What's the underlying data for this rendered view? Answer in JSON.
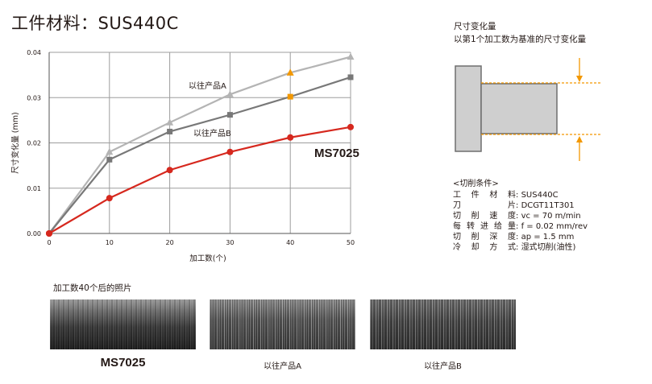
{
  "title": "工件材料：SUS440C",
  "chart_data": {
    "type": "line",
    "xlabel": "加工数(个)",
    "ylabel": "尺寸变化量 (mm)",
    "x": [
      0,
      10,
      20,
      30,
      40,
      50
    ],
    "xlim": [
      0,
      50
    ],
    "ylim": [
      0,
      0.04
    ],
    "xticks": [
      "0",
      "10",
      "20",
      "30",
      "40",
      "50"
    ],
    "yticks": [
      "0.00",
      "0.01",
      "0.02",
      "0.03",
      "0.04"
    ],
    "grid": true,
    "series": [
      {
        "name": "以往产品A",
        "color": "#b4b4b4",
        "marker": "triangle",
        "values": [
          0,
          0.018,
          0.0245,
          0.0307,
          0.0355,
          0.039
        ]
      },
      {
        "name": "以往产品B",
        "color": "#787878",
        "marker": "square",
        "values": [
          0,
          0.0163,
          0.0225,
          0.0262,
          0.0302,
          0.0345
        ]
      },
      {
        "name": "MS7025",
        "color": "#d6281e",
        "marker": "circle",
        "values": [
          0,
          0.0078,
          0.014,
          0.018,
          0.0212,
          0.0235
        ]
      }
    ],
    "accent_marker_color": "#f39800"
  },
  "right_panel": {
    "line1": "尺寸变化量",
    "line2": "以第1个加工数为基准的尺寸变化量"
  },
  "conditions": {
    "title": "<切削条件>",
    "rows": [
      {
        "key": "工件材料",
        "value": "SUS440C"
      },
      {
        "key": "刀片",
        "value": "DCGT11T301"
      },
      {
        "key": "切削速度",
        "value": "vc = 70 m/min"
      },
      {
        "key": "每转进给量",
        "value": "f = 0.02 mm/rev"
      },
      {
        "key": "切削深度",
        "value": "ap = 1.5 mm"
      },
      {
        "key": "冷却方式",
        "value": "湿式切削(油性)"
      }
    ]
  },
  "photos": {
    "title": "加工数40个后的照片",
    "captions": [
      "MS7025",
      "以往产品A",
      "以往产品B"
    ]
  }
}
